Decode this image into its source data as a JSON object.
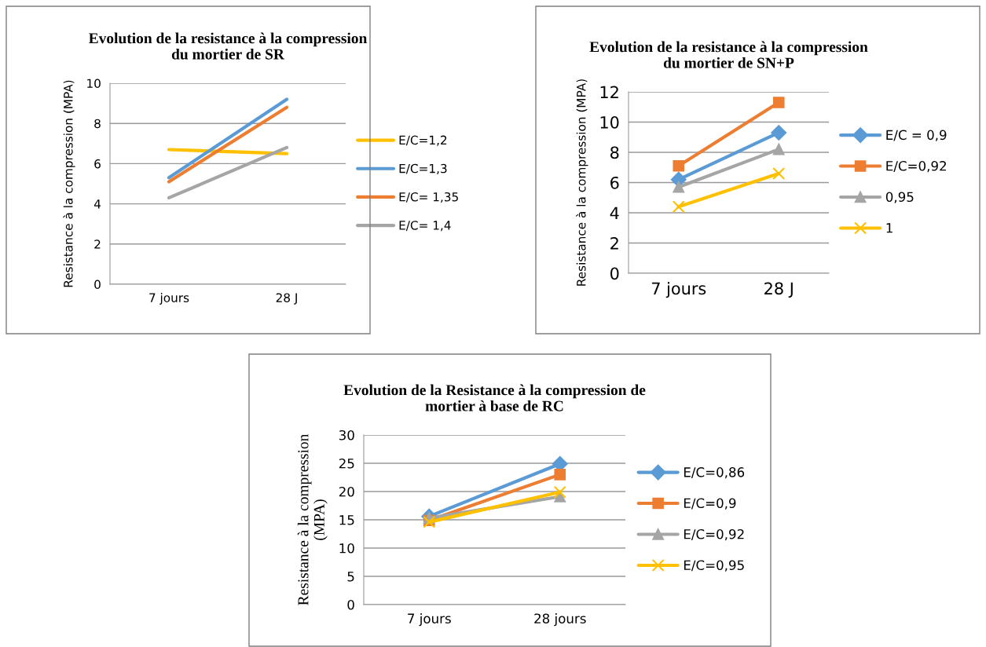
{
  "chart_data": [
    {
      "type": "line",
      "title": "Evolution de la resistance à la compression\ndu mortier de SR",
      "ylabel": "Resistance à la compression (MPA)",
      "categories": [
        "7 jours",
        "28 J"
      ],
      "ylim": [
        0,
        10
      ],
      "yticks": [
        0,
        2,
        4,
        6,
        8,
        10
      ],
      "grid": "y",
      "legend": "right",
      "marker": "none",
      "series": [
        {
          "name": "E/C=1,2",
          "color": "#ffc000",
          "values": [
            6.7,
            6.5
          ]
        },
        {
          "name": "E/C=1,3",
          "color": "#5b9bd5",
          "values": [
            5.3,
            9.2
          ]
        },
        {
          "name": "E/C= 1,35",
          "color": "#ed7d31",
          "values": [
            5.1,
            8.8
          ]
        },
        {
          "name": "E/C= 1,4",
          "color": "#a5a5a5",
          "values": [
            4.3,
            6.8
          ]
        }
      ]
    },
    {
      "type": "line",
      "title": "Evolution de la resistance à la compression\ndu mortier de SN+P",
      "ylabel": "Resistance à la compression (MPA)",
      "categories": [
        "7 jours",
        "28 J"
      ],
      "ylim": [
        0,
        12
      ],
      "yticks": [
        0,
        2,
        4,
        6,
        8,
        10,
        12
      ],
      "grid": "y",
      "legend": "right",
      "series": [
        {
          "name": "E/C = 0,9",
          "color": "#5b9bd5",
          "marker": "diamond",
          "values": [
            6.2,
            9.3
          ]
        },
        {
          "name": "E/C=0,92",
          "color": "#ed7d31",
          "marker": "square",
          "values": [
            7.1,
            11.3
          ]
        },
        {
          "name": "0,95",
          "color": "#a5a5a5",
          "marker": "triangle",
          "values": [
            5.7,
            8.2
          ]
        },
        {
          "name": "1",
          "color": "#ffc000",
          "marker": "cross",
          "values": [
            4.4,
            6.6
          ]
        }
      ]
    },
    {
      "type": "line",
      "title": "Evolution de la Resistance à la compression de\nmortier à base de RC",
      "ylabel": "Resistance à la compression\n(MPA)",
      "categories": [
        "7 jours",
        "28 jours"
      ],
      "ylim": [
        0,
        30
      ],
      "yticks": [
        0,
        5,
        10,
        15,
        20,
        25,
        30
      ],
      "grid": "y",
      "legend": "right",
      "series": [
        {
          "name": "E/C=0,86",
          "color": "#5b9bd5",
          "marker": "diamond",
          "values": [
            15.6,
            24.9
          ]
        },
        {
          "name": "E/C=0,9",
          "color": "#ed7d31",
          "marker": "square",
          "values": [
            14.9,
            23.0
          ]
        },
        {
          "name": "E/C=0,92",
          "color": "#a5a5a5",
          "marker": "triangle",
          "values": [
            15.3,
            19.1
          ]
        },
        {
          "name": "E/C=0,95",
          "color": "#ffc000",
          "marker": "cross",
          "values": [
            14.6,
            19.9
          ]
        }
      ]
    }
  ]
}
